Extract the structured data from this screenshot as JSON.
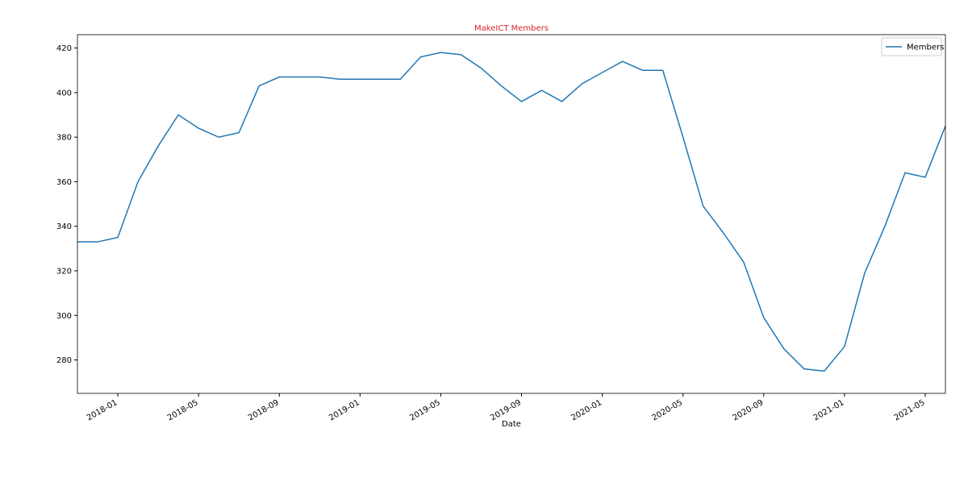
{
  "chart_data": {
    "type": "line",
    "title": "MakeICT Members",
    "title_color": "#d62728",
    "x_label": "Date",
    "x": [
      "2017-11",
      "2017-12",
      "2018-01",
      "2018-02",
      "2018-03",
      "2018-04",
      "2018-05",
      "2018-06",
      "2018-07",
      "2018-08",
      "2018-09",
      "2018-10",
      "2018-11",
      "2018-12",
      "2019-01",
      "2019-02",
      "2019-03",
      "2019-04",
      "2019-05",
      "2019-06",
      "2019-07",
      "2019-08",
      "2019-09",
      "2019-10",
      "2019-11",
      "2019-12",
      "2020-01",
      "2020-02",
      "2020-03",
      "2020-04",
      "2020-05",
      "2020-06",
      "2020-07",
      "2020-08",
      "2020-09",
      "2020-10",
      "2020-11",
      "2020-12",
      "2021-01",
      "2021-02",
      "2021-03",
      "2021-04",
      "2021-05",
      "2021-06"
    ],
    "series": [
      {
        "name": "Members",
        "color": "#1f77b4",
        "values": [
          333,
          333,
          335,
          360,
          376,
          390,
          384,
          380,
          382,
          403,
          407,
          407,
          407,
          406,
          406,
          406,
          406,
          416,
          418,
          417,
          411,
          403,
          396,
          401,
          396,
          404,
          409,
          414,
          410,
          410,
          380,
          349,
          337,
          324,
          299,
          285,
          276,
          275,
          286,
          319,
          340,
          364,
          362,
          385
        ]
      }
    ],
    "xlim": [
      "2017-11",
      "2021-06"
    ],
    "xticks": [
      "2018-01",
      "2018-05",
      "2018-09",
      "2019-01",
      "2019-05",
      "2019-09",
      "2020-01",
      "2020-05",
      "2020-09",
      "2021-01",
      "2021-05"
    ],
    "ylim": [
      265,
      426
    ],
    "yticks": [
      280,
      300,
      320,
      340,
      360,
      380,
      400,
      420
    ],
    "legend": "upper right"
  }
}
